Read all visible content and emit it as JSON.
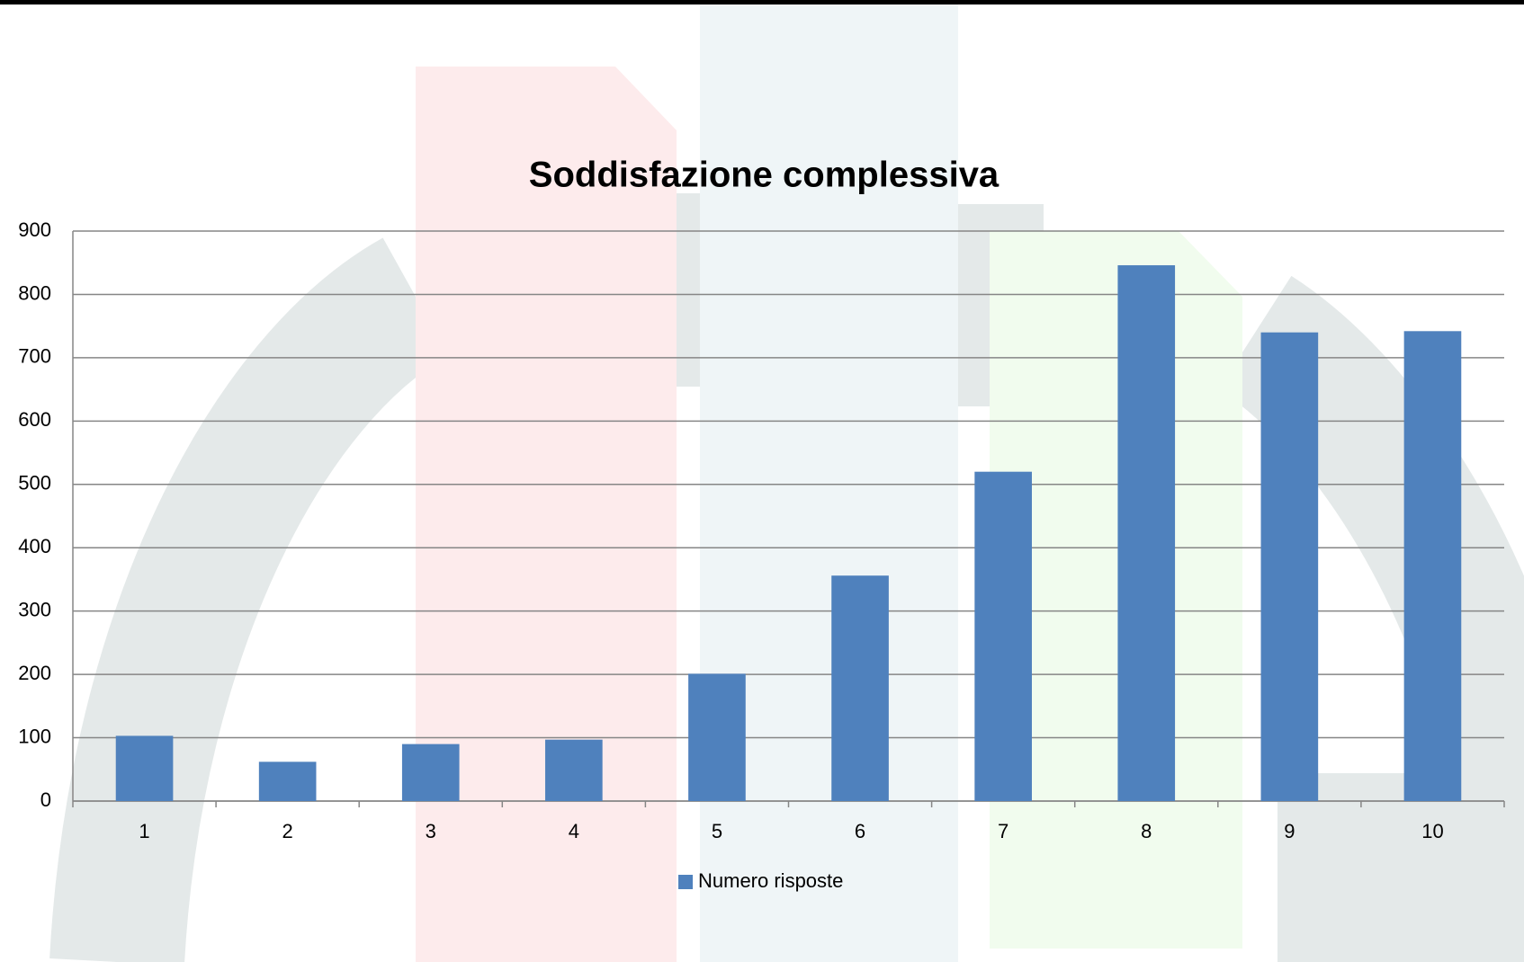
{
  "chart_data": {
    "type": "bar",
    "title": "Soddisfazione complessiva",
    "categories": [
      "1",
      "2",
      "3",
      "4",
      "5",
      "6",
      "7",
      "8",
      "9",
      "10"
    ],
    "series": [
      {
        "name": "Numero risposte",
        "color": "#4f81bd",
        "values": [
          103,
          62,
          90,
          97,
          201,
          356,
          520,
          846,
          740,
          742
        ]
      }
    ],
    "ylim": [
      0,
      900
    ],
    "yticks": [
      0,
      100,
      200,
      300,
      400,
      500,
      600,
      700,
      800,
      900
    ],
    "grid": true,
    "legend": "bottom"
  }
}
